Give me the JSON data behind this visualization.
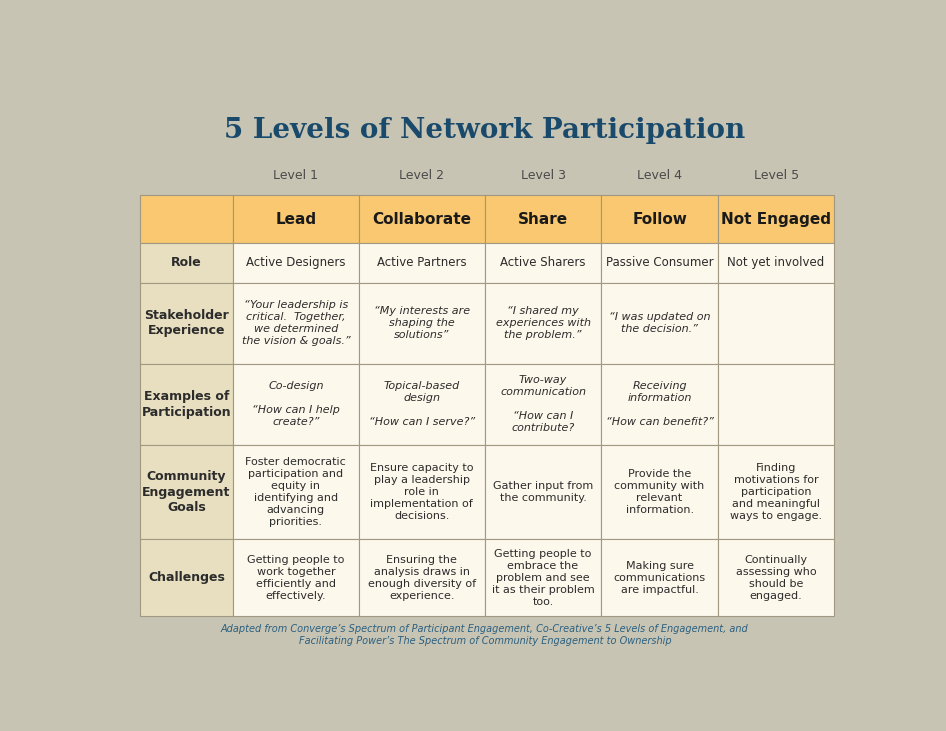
{
  "title": "5 Levels of Network Participation",
  "title_color": "#1a4a6b",
  "title_fontsize": 20,
  "background_color": "#c8c4b4",
  "header_orange": "#f9c870",
  "cell_cream": "#fdf8ec",
  "row_label_bg": "#e8dfc0",
  "border_color": "#a09880",
  "text_color_dark": "#2c2c2c",
  "text_color_header": "#1a1a1a",
  "footer_color": "#2a6080",
  "level_labels": [
    "Level 1",
    "Level 2",
    "Level 3",
    "Level 4",
    "Level 5"
  ],
  "col_headers": [
    "Lead",
    "Collaborate",
    "Share",
    "Follow",
    "Not Engaged"
  ],
  "row_labels": [
    "Role",
    "Stakeholder\nExperience",
    "Examples of\nParticipation",
    "Community\nEngagement\nGoals",
    "Challenges"
  ],
  "cells": [
    [
      "Active Designers",
      "Active Partners",
      "Active Sharers",
      "Passive Consumer",
      "Not yet involved"
    ],
    [
      "“Your leadership is\ncritical.  Together,\nwe determined\nthe vision & goals.”",
      "“My interests are\nshaping the\nsolutions”",
      "“I shared my\nexperiences with\nthe problem.”",
      "“I was updated on\nthe decision.”",
      ""
    ],
    [
      "Co-design\n\n“How can I help\ncreate?”",
      "Topical-based\ndesign\n\n“How can I serve?”",
      "Two-way\ncommunication\n\n“How can I\ncontribute?",
      "Receiving\ninformation\n\n“How can benefit?”",
      ""
    ],
    [
      "Foster democratic\nparticipation and\nequity in\nidentifying and\nadvancing\npriorities.",
      "Ensure capacity to\nplay a leadership\nrole in\nimplementation of\ndecisions.",
      "Gather input from\nthe community.",
      "Provide the\ncommunity with\nrelevant\ninformation.",
      "Finding\nmotivations for\nparticipation\nand meaningful\nways to engage."
    ],
    [
      "Getting people to\nwork together\nefficiently and\neffectively.",
      "Ensuring the\nanalysis draws in\nenough diversity of\nexperience.",
      "Getting people to\nembrace the\nproblem and see\nit as their problem\ntoo.",
      "Making sure\ncommunications\nare impactful.",
      "Continually\nassessing who\nshould be\nengaged."
    ]
  ],
  "footer_line1": "Adapted from Converge’s Spectrum of Participant Engagement, Co-Creative’s 5 Levels of Engagement, and",
  "footer_line2": "Facilitating Power’s The Spectrum of Community Engagement to Ownership"
}
